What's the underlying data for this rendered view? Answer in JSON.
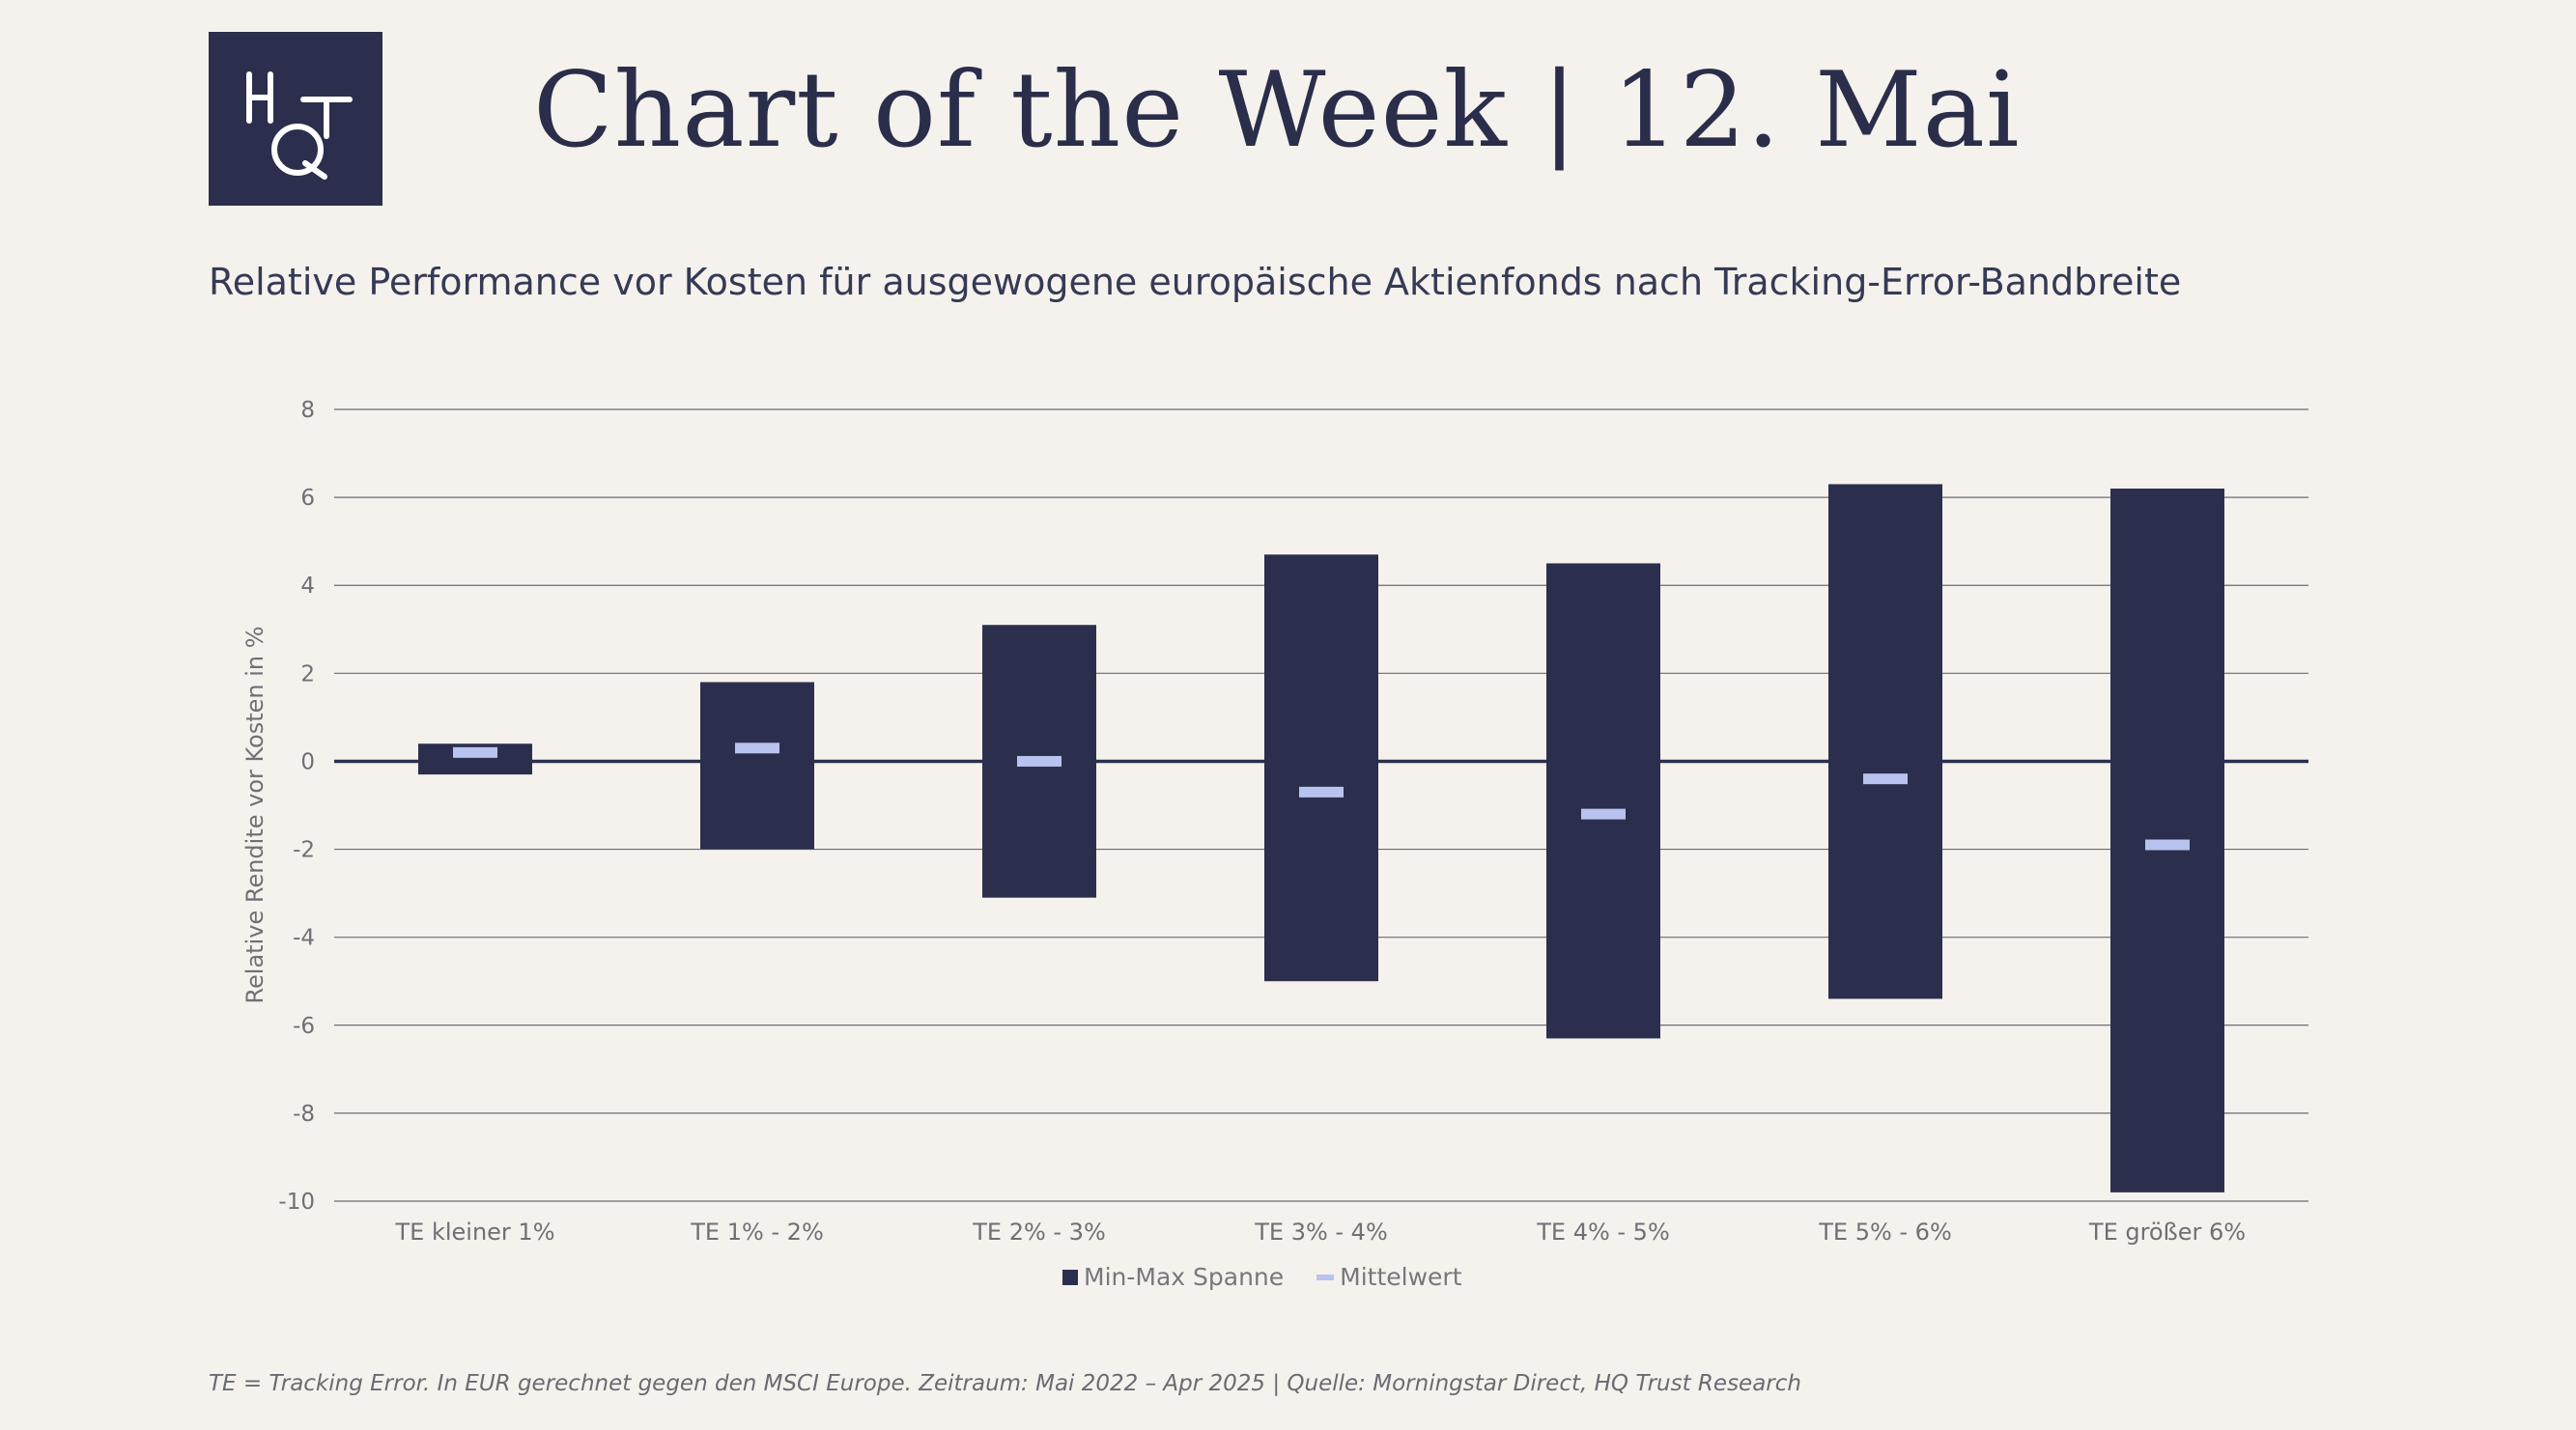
{
  "header": {
    "logo_text": "HQT",
    "title": "Chart of the Week | 12. Mai",
    "subtitle": "Relative Performance vor Kosten für ausgewogene europäische Aktienfonds nach Tracking-Error-Bandbreite"
  },
  "colors": {
    "background": "#f5f2ed",
    "bar": "#2b2f4d",
    "mean_marker": "#b9c3f0",
    "gridline": "#6b6b73",
    "zero_line": "#2b2f4d"
  },
  "chart_data": {
    "type": "bar",
    "subtype": "floating-range-with-mean",
    "ylabel": "Relative Rendite vor Kosten in %",
    "xlabel": "",
    "ylim": [
      -10,
      8
    ],
    "yticks": [
      8,
      6,
      4,
      2,
      0,
      -2,
      -4,
      -6,
      -8,
      -10
    ],
    "grid": true,
    "legend_position": "bottom-center",
    "categories": [
      "TE kleiner 1%",
      "TE 1% - 2%",
      "TE 2% - 3%",
      "TE 3% - 4%",
      "TE 4% - 5%",
      "TE 5% - 6%",
      "TE größer 6%"
    ],
    "series": [
      {
        "name": "Min",
        "values": [
          -0.3,
          -2.0,
          -3.1,
          -5.0,
          -6.3,
          -5.4,
          -9.8
        ]
      },
      {
        "name": "Max",
        "values": [
          0.4,
          1.8,
          3.1,
          4.7,
          4.5,
          6.3,
          6.2
        ]
      },
      {
        "name": "Mittelwert",
        "values": [
          0.2,
          0.3,
          0.0,
          -0.7,
          -1.2,
          -0.4,
          -1.9
        ]
      }
    ],
    "legend": [
      "Min-Max Spanne",
      "Mittelwert"
    ]
  },
  "footnote": "TE = Tracking Error. In EUR gerechnet gegen den MSCI Europe. Zeitraum: Mai 2022 – Apr 2025 | Quelle: Morningstar Direct, HQ Trust Research"
}
